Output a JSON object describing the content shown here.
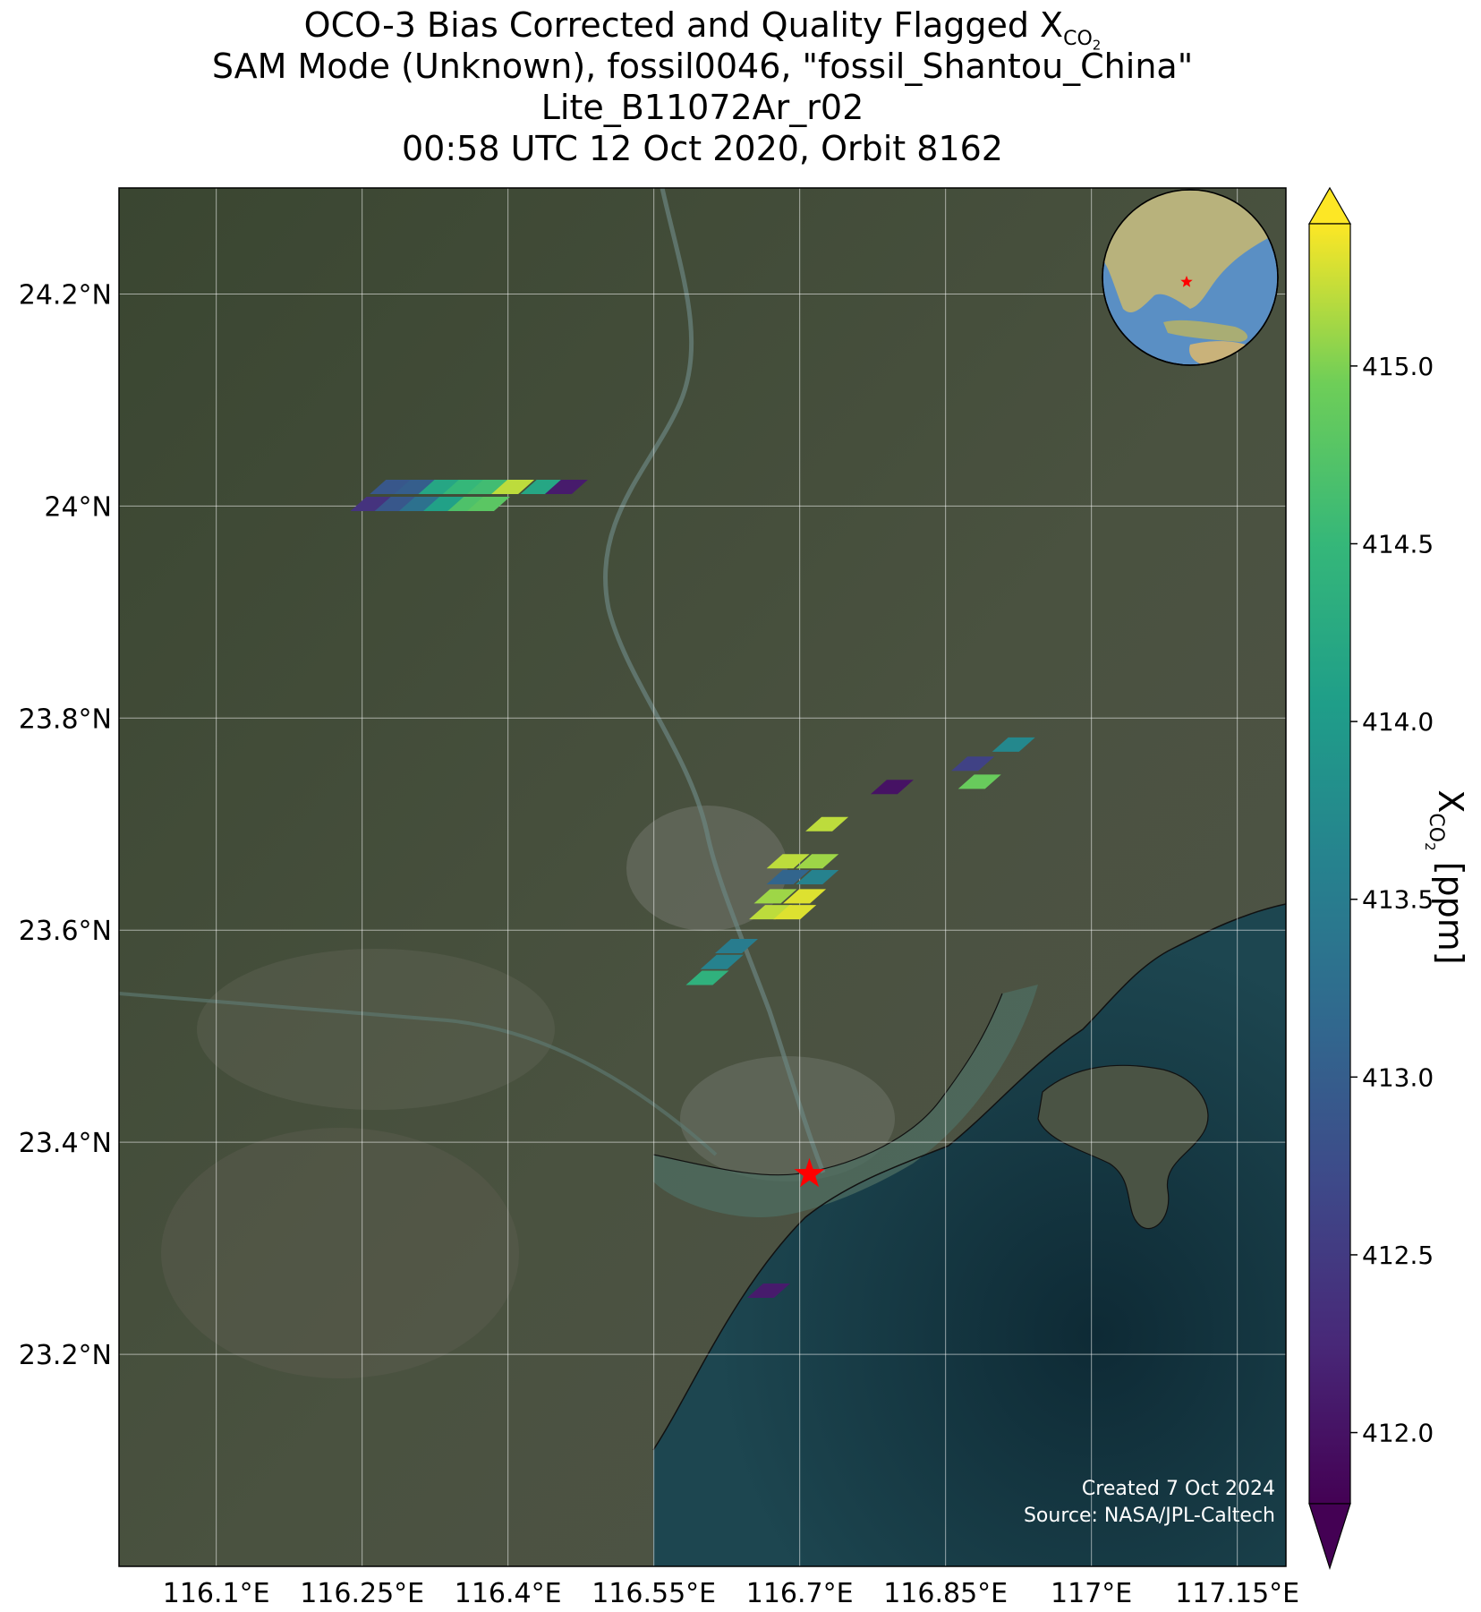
{
  "title": {
    "line1_prefix": "OCO-3 Bias Corrected and Quality Flagged X",
    "line1_sub": "CO",
    "line1_sub2": "2",
    "line2": "SAM Mode (Unknown), fossil0046, \"fossil_Shantou_China\"",
    "line3": "Lite_B11072Ar_r02",
    "line4": "00:58 UTC 12 Oct 2020, Orbit 8162"
  },
  "map": {
    "lon_range": [
      116.0,
      117.2
    ],
    "lat_range": [
      23.0,
      24.3
    ],
    "lat_ticks": [
      {
        "value": 23.2,
        "label": "23.2°N"
      },
      {
        "value": 23.4,
        "label": "23.4°N"
      },
      {
        "value": 23.6,
        "label": "23.6°N"
      },
      {
        "value": 23.8,
        "label": "23.8°N"
      },
      {
        "value": 24.0,
        "label": "24°N"
      },
      {
        "value": 24.2,
        "label": "24.2°N"
      }
    ],
    "lon_ticks": [
      {
        "value": 116.1,
        "label": "116.1°E"
      },
      {
        "value": 116.25,
        "label": "116.25°E"
      },
      {
        "value": 116.4,
        "label": "116.4°E"
      },
      {
        "value": 116.55,
        "label": "116.55°E"
      },
      {
        "value": 116.7,
        "label": "116.7°E"
      },
      {
        "value": 116.85,
        "label": "116.85°E"
      },
      {
        "value": 117.0,
        "label": "117°E"
      },
      {
        "value": 117.15,
        "label": "117.15°E"
      }
    ],
    "target": {
      "lon": 116.71,
      "lat": 23.37,
      "name": "fossil_Shantou_China",
      "marker_color": "#ff0000"
    },
    "credit_line1": "Created 7 Oct 2024",
    "credit_line2": "Source: NASA/JPL-Caltech",
    "land_color": "#3f4a36",
    "sea_color": "#12333d",
    "inset_globe": {
      "center_lon": 116.71,
      "center_lat": 23.37,
      "ocean_color": "#5a8fc4",
      "land_color": "#b8b27c"
    }
  },
  "colorbar": {
    "label_prefix": "X",
    "label_sub": "CO",
    "label_sub2": "2",
    "label_suffix": " [ppm]",
    "vmin": 411.8,
    "vmax": 415.4,
    "extend": "both",
    "ticks": [
      412.0,
      412.5,
      413.0,
      413.5,
      414.0,
      414.5,
      415.0
    ],
    "tick_labels": [
      "412.0",
      "412.5",
      "413.0",
      "413.5",
      "414.0",
      "414.5",
      "415.0"
    ],
    "colormap": "viridis"
  },
  "soundings": [
    {
      "lon": 116.26,
      "lat": 24.002,
      "xco2": 412.4
    },
    {
      "lon": 116.285,
      "lat": 24.002,
      "xco2": 412.9
    },
    {
      "lon": 116.31,
      "lat": 24.002,
      "xco2": 413.3
    },
    {
      "lon": 116.335,
      "lat": 24.002,
      "xco2": 414.1
    },
    {
      "lon": 116.36,
      "lat": 24.002,
      "xco2": 414.7
    },
    {
      "lon": 116.38,
      "lat": 24.002,
      "xco2": 414.8
    },
    {
      "lon": 116.28,
      "lat": 24.018,
      "xco2": 412.9
    },
    {
      "lon": 116.305,
      "lat": 24.018,
      "xco2": 413.0
    },
    {
      "lon": 116.33,
      "lat": 24.018,
      "xco2": 414.2
    },
    {
      "lon": 116.355,
      "lat": 24.018,
      "xco2": 414.5
    },
    {
      "lon": 116.38,
      "lat": 24.018,
      "xco2": 414.6
    },
    {
      "lon": 116.405,
      "lat": 24.018,
      "xco2": 415.2
    },
    {
      "lon": 116.435,
      "lat": 24.018,
      "xco2": 414.2
    },
    {
      "lon": 116.46,
      "lat": 24.018,
      "xco2": 412.1
    },
    {
      "lon": 116.878,
      "lat": 23.757,
      "xco2": 412.6
    },
    {
      "lon": 116.92,
      "lat": 23.775,
      "xco2": 413.7
    },
    {
      "lon": 116.885,
      "lat": 23.74,
      "xco2": 414.9
    },
    {
      "lon": 116.795,
      "lat": 23.735,
      "xco2": 412.0
    },
    {
      "lon": 116.728,
      "lat": 23.7,
      "xco2": 415.2
    },
    {
      "lon": 116.688,
      "lat": 23.665,
      "xco2": 415.2
    },
    {
      "lon": 116.718,
      "lat": 23.665,
      "xco2": 415.1
    },
    {
      "lon": 116.688,
      "lat": 23.65,
      "xco2": 413.1
    },
    {
      "lon": 116.718,
      "lat": 23.65,
      "xco2": 413.6
    },
    {
      "lon": 116.675,
      "lat": 23.632,
      "xco2": 415.1
    },
    {
      "lon": 116.705,
      "lat": 23.632,
      "xco2": 415.3
    },
    {
      "lon": 116.67,
      "lat": 23.617,
      "xco2": 415.2
    },
    {
      "lon": 116.695,
      "lat": 23.617,
      "xco2": 415.3
    },
    {
      "lon": 116.635,
      "lat": 23.585,
      "xco2": 413.5
    },
    {
      "lon": 116.62,
      "lat": 23.57,
      "xco2": 413.6
    },
    {
      "lon": 116.605,
      "lat": 23.555,
      "xco2": 414.4
    },
    {
      "lon": 116.668,
      "lat": 23.26,
      "xco2": 412.1
    }
  ]
}
